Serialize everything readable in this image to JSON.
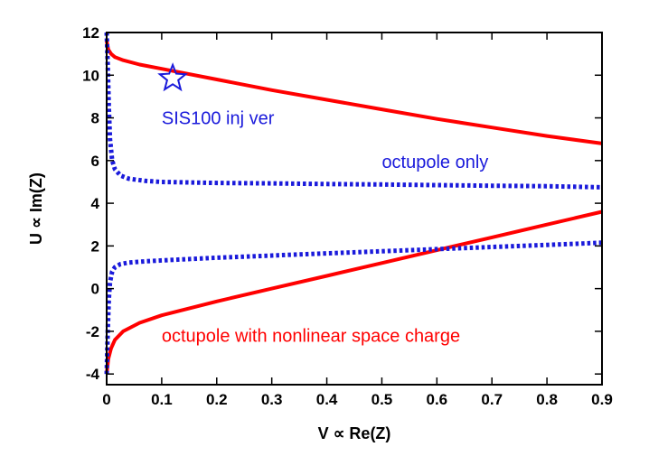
{
  "chart_data": {
    "type": "line",
    "title": "",
    "xlabel": "V ∝ Re(Z)",
    "ylabel": "U ∝ Im(Z)",
    "xlim": [
      0,
      0.9
    ],
    "ylim": [
      -4.5,
      12
    ],
    "xticks": [
      "0",
      "0.1",
      "0.2",
      "0.3",
      "0.4",
      "0.5",
      "0.6",
      "0.7",
      "0.8",
      "0.9"
    ],
    "yticks": [
      "-4",
      "-2",
      "0",
      "2",
      "4",
      "6",
      "8",
      "10",
      "12"
    ],
    "grid": false,
    "colors": {
      "red": "#ff0000",
      "blue": "#1a1adb"
    },
    "series": [
      {
        "color": "#ff0000",
        "style": "solid",
        "x": [
          0,
          0.003,
          0.008,
          0.015,
          0.03,
          0.06,
          0.1,
          0.2,
          0.3,
          0.4,
          0.5,
          0.6,
          0.7,
          0.8,
          0.9
        ],
        "y": [
          11.6,
          11.2,
          11.0,
          10.85,
          10.7,
          10.5,
          10.3,
          9.8,
          9.3,
          8.85,
          8.4,
          7.95,
          7.55,
          7.15,
          6.8
        ]
      },
      {
        "color": "#ff0000",
        "style": "solid",
        "x": [
          0,
          0.003,
          0.008,
          0.015,
          0.03,
          0.06,
          0.1,
          0.2,
          0.3,
          0.4,
          0.5,
          0.6,
          0.7,
          0.8,
          0.9
        ],
        "y": [
          -4.0,
          -3.3,
          -2.8,
          -2.4,
          -2.0,
          -1.6,
          -1.25,
          -0.6,
          0.0,
          0.6,
          1.2,
          1.8,
          2.4,
          3.0,
          3.6
        ]
      },
      {
        "color": "#1a1adb",
        "style": "dotted",
        "x": [
          0,
          0.002,
          0.004,
          0.006,
          0.01,
          0.015,
          0.025,
          0.04,
          0.07,
          0.1,
          0.2,
          0.3,
          0.4,
          0.5,
          0.6,
          0.7,
          0.8,
          0.9
        ],
        "y": [
          12.0,
          10.5,
          8.5,
          7.0,
          6.0,
          5.6,
          5.3,
          5.15,
          5.05,
          5.0,
          4.95,
          4.93,
          4.9,
          4.88,
          4.85,
          4.82,
          4.8,
          4.75
        ]
      },
      {
        "color": "#1a1adb",
        "style": "dotted",
        "x": [
          0,
          0.002,
          0.004,
          0.006,
          0.01,
          0.015,
          0.025,
          0.04,
          0.07,
          0.1,
          0.2,
          0.3,
          0.4,
          0.5,
          0.6,
          0.7,
          0.8,
          0.9
        ],
        "y": [
          -4.0,
          -2.0,
          -0.5,
          0.3,
          0.8,
          1.0,
          1.15,
          1.22,
          1.28,
          1.32,
          1.45,
          1.55,
          1.65,
          1.75,
          1.85,
          1.95,
          2.05,
          2.15
        ]
      }
    ],
    "marker": {
      "symbol": "star",
      "x": 0.12,
      "y": 9.85,
      "color": "#1a1adb"
    },
    "annotations": [
      {
        "text": "SIS100 inj ver",
        "x": 0.1,
        "y": 8.0,
        "color": "#1a1adb"
      },
      {
        "text": "octupole only",
        "x": 0.5,
        "y": 5.95,
        "color": "#1a1adb"
      },
      {
        "text": "octupole with nonlinear space charge",
        "x": 0.1,
        "y": -2.2,
        "color": "#ff0000"
      }
    ]
  }
}
